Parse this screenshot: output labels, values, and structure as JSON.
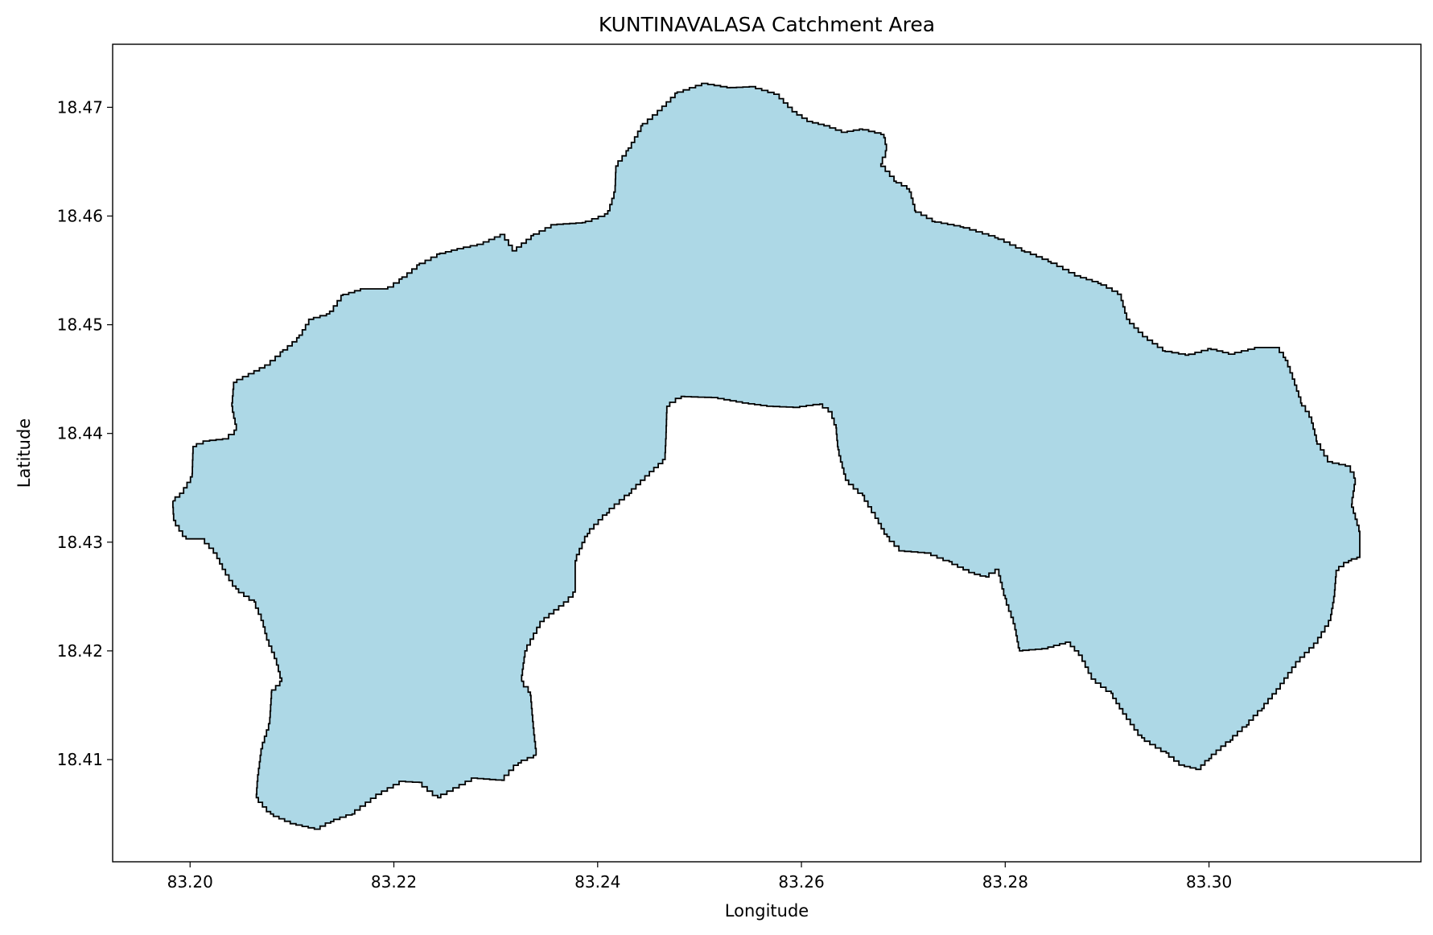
{
  "chart_data": {
    "type": "map",
    "title": "KUNTINAVALASA Catchment Area",
    "xlabel": "Longitude",
    "ylabel": "Latitude",
    "xlim": [
      83.1924,
      83.3208
    ],
    "ylim": [
      18.4006,
      18.4758
    ],
    "xticks": [
      "83.20",
      "83.22",
      "83.24",
      "83.26",
      "83.28",
      "83.30"
    ],
    "yticks": [
      "18.41",
      "18.42",
      "18.43",
      "18.44",
      "18.45",
      "18.46",
      "18.47"
    ],
    "fill_color": "#add8e6",
    "edge_color": "#000000",
    "polygon": [
      [
        83.2101,
        18.4041
      ],
      [
        83.2125,
        18.4036
      ],
      [
        83.2138,
        18.4043
      ],
      [
        83.2159,
        18.405
      ],
      [
        83.2185,
        18.4068
      ],
      [
        83.2208,
        18.408
      ],
      [
        83.2225,
        18.4079
      ],
      [
        83.2243,
        18.4065
      ],
      [
        83.2261,
        18.4074
      ],
      [
        83.2279,
        18.4083
      ],
      [
        83.2306,
        18.4081
      ],
      [
        83.2322,
        18.4097
      ],
      [
        83.234,
        18.4104
      ],
      [
        83.2337,
        18.4129
      ],
      [
        83.2334,
        18.4162
      ],
      [
        83.2325,
        18.4172
      ],
      [
        83.2329,
        18.42
      ],
      [
        83.2345,
        18.4227
      ],
      [
        83.2369,
        18.4245
      ],
      [
        83.2378,
        18.4254
      ],
      [
        83.2378,
        18.4283
      ],
      [
        83.239,
        18.4308
      ],
      [
        83.2409,
        18.4327
      ],
      [
        83.2431,
        18.4345
      ],
      [
        83.2453,
        18.4365
      ],
      [
        83.2466,
        18.4376
      ],
      [
        83.2467,
        18.4395
      ],
      [
        83.2468,
        18.4425
      ],
      [
        83.2482,
        18.4434
      ],
      [
        83.2515,
        18.4433
      ],
      [
        83.2545,
        18.4428
      ],
      [
        83.2569,
        18.4425
      ],
      [
        83.2595,
        18.4424
      ],
      [
        83.2618,
        18.4427
      ],
      [
        83.2629,
        18.442
      ],
      [
        83.2634,
        18.4405
      ],
      [
        83.2636,
        18.4385
      ],
      [
        83.2644,
        18.4357
      ],
      [
        83.266,
        18.4343
      ],
      [
        83.2674,
        18.4322
      ],
      [
        83.2684,
        18.4305
      ],
      [
        83.2698,
        18.4292
      ],
      [
        83.2724,
        18.429
      ],
      [
        83.2745,
        18.4282
      ],
      [
        83.2767,
        18.4272
      ],
      [
        83.2781,
        18.4268
      ],
      [
        83.2793,
        18.4275
      ],
      [
        83.28,
        18.4248
      ],
      [
        83.2809,
        18.4225
      ],
      [
        83.2814,
        18.42
      ],
      [
        83.2839,
        18.4202
      ],
      [
        83.2862,
        18.4208
      ],
      [
        83.2874,
        18.4196
      ],
      [
        83.2886,
        18.4174
      ],
      [
        83.2904,
        18.4161
      ],
      [
        83.2917,
        18.4142
      ],
      [
        83.2934,
        18.412
      ],
      [
        83.2958,
        18.4106
      ],
      [
        83.2973,
        18.4095
      ],
      [
        83.299,
        18.4091
      ],
      [
        83.3,
        18.4101
      ],
      [
        83.3021,
        18.4118
      ],
      [
        83.3037,
        18.4132
      ],
      [
        83.3052,
        18.4147
      ],
      [
        83.3068,
        18.4165
      ],
      [
        83.3087,
        18.419
      ],
      [
        83.3105,
        18.4207
      ],
      [
        83.3119,
        18.4228
      ],
      [
        83.3123,
        18.425
      ],
      [
        83.3125,
        18.4274
      ],
      [
        83.3137,
        18.4283
      ],
      [
        83.3148,
        18.4286
      ],
      [
        83.3148,
        18.431
      ],
      [
        83.314,
        18.4335
      ],
      [
        83.3144,
        18.4359
      ],
      [
        83.3137,
        18.437
      ],
      [
        83.3118,
        18.4374
      ],
      [
        83.3106,
        18.4393
      ],
      [
        83.31,
        18.4415
      ],
      [
        83.3091,
        18.4428
      ],
      [
        83.3083,
        18.445
      ],
      [
        83.3075,
        18.447
      ],
      [
        83.3067,
        18.4479
      ],
      [
        83.3048,
        18.4479
      ],
      [
        83.3022,
        18.4473
      ],
      [
        83.3002,
        18.4478
      ],
      [
        83.298,
        18.4472
      ],
      [
        83.2957,
        18.4476
      ],
      [
        83.2937,
        18.4489
      ],
      [
        83.292,
        18.4505
      ],
      [
        83.2913,
        18.4528
      ],
      [
        83.2894,
        18.4538
      ],
      [
        83.2871,
        18.4545
      ],
      [
        83.2845,
        18.4558
      ],
      [
        83.2819,
        18.4568
      ],
      [
        83.2793,
        18.458
      ],
      [
        83.2759,
        18.459
      ],
      [
        83.2731,
        18.4595
      ],
      [
        83.2712,
        18.4605
      ],
      [
        83.2706,
        18.4625
      ],
      [
        83.2693,
        18.4632
      ],
      [
        83.2678,
        18.4648
      ],
      [
        83.2684,
        18.466
      ],
      [
        83.2681,
        18.4675
      ],
      [
        83.266,
        18.468
      ],
      [
        83.2642,
        18.4677
      ],
      [
        83.2625,
        18.4683
      ],
      [
        83.2608,
        18.4687
      ],
      [
        83.2593,
        18.4696
      ],
      [
        83.2576,
        18.4712
      ],
      [
        83.2552,
        18.4719
      ],
      [
        83.253,
        18.4718
      ],
      [
        83.2505,
        18.4722
      ],
      [
        83.2478,
        18.4713
      ],
      [
        83.2461,
        18.4697
      ],
      [
        83.2444,
        18.4683
      ],
      [
        83.243,
        18.466
      ],
      [
        83.2418,
        18.4646
      ],
      [
        83.2417,
        18.4622
      ],
      [
        83.241,
        18.4602
      ],
      [
        83.2388,
        18.4594
      ],
      [
        83.2357,
        18.4592
      ],
      [
        83.2337,
        18.4582
      ],
      [
        83.2318,
        18.4568
      ],
      [
        83.2307,
        18.4583
      ],
      [
        83.2285,
        18.4574
      ],
      [
        83.2265,
        18.457
      ],
      [
        83.2245,
        18.4565
      ],
      [
        83.2225,
        18.4555
      ],
      [
        83.2208,
        18.4542
      ],
      [
        83.2194,
        18.4533
      ],
      [
        83.217,
        18.4533
      ],
      [
        83.215,
        18.4527
      ],
      [
        83.2137,
        18.451
      ],
      [
        83.2118,
        18.4505
      ],
      [
        83.2107,
        18.4488
      ],
      [
        83.2091,
        18.4475
      ],
      [
        83.2076,
        18.4463
      ],
      [
        83.206,
        18.4455
      ],
      [
        83.2043,
        18.4447
      ],
      [
        83.2041,
        18.4425
      ],
      [
        83.2046,
        18.4403
      ],
      [
        83.2035,
        18.4395
      ],
      [
        83.2016,
        18.4393
      ],
      [
        83.2003,
        18.4388
      ],
      [
        83.2002,
        18.436
      ],
      [
        83.1992,
        18.4345
      ],
      [
        83.1983,
        18.4338
      ],
      [
        83.1984,
        18.432
      ],
      [
        83.1996,
        18.4303
      ],
      [
        83.2012,
        18.4303
      ],
      [
        83.2025,
        18.429
      ],
      [
        83.2033,
        18.4275
      ],
      [
        83.2045,
        18.4257
      ],
      [
        83.2063,
        18.4245
      ],
      [
        83.2071,
        18.4228
      ],
      [
        83.2076,
        18.421
      ],
      [
        83.2084,
        18.4193
      ],
      [
        83.209,
        18.4172
      ],
      [
        83.208,
        18.4162
      ],
      [
        83.2078,
        18.4133
      ],
      [
        83.207,
        18.411
      ],
      [
        83.2066,
        18.408
      ],
      [
        83.2065,
        18.4065
      ],
      [
        83.2079,
        18.405
      ]
    ]
  }
}
